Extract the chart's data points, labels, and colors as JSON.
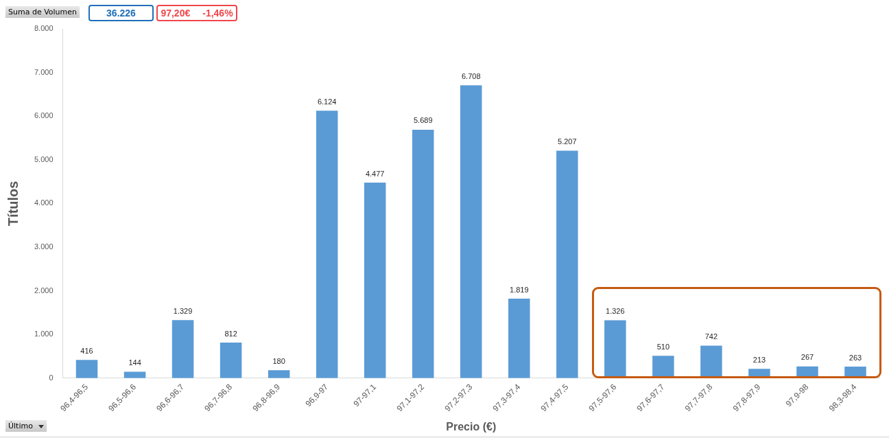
{
  "chart_data": {
    "type": "bar",
    "xlabel": "Precio (€)",
    "ylabel": "Títulos",
    "categories": [
      "96,4-96,5",
      "96,5-96,6",
      "96,6-96,7",
      "96,7-96,8",
      "96,8-96,9",
      "96,9-97",
      "97-97,1",
      "97,1-97,2",
      "97,2-97,3",
      "97,3-97,4",
      "97,4-97,5",
      "97,5-97,6",
      "97,6-97,7",
      "97,7-97,8",
      "97,8-97,9",
      "97,9-98",
      "98,3-98,4"
    ],
    "values": [
      416,
      144,
      1329,
      812,
      180,
      6124,
      4477,
      5689,
      6708,
      1819,
      5207,
      1326,
      510,
      742,
      213,
      267,
      263
    ],
    "value_labels": [
      "416",
      "144",
      "1.329",
      "812",
      "180",
      "6.124",
      "4.477",
      "5.689",
      "6.708",
      "1.819",
      "5.207",
      "1.326",
      "510",
      "742",
      "213",
      "267",
      "263"
    ],
    "color": "#5b9bd5",
    "ylim": [
      0,
      8000
    ],
    "yticks": [
      {
        "value": 0,
        "label": "0"
      },
      {
        "value": 1000,
        "label": "1.000"
      },
      {
        "value": 2000,
        "label": "2.000"
      },
      {
        "value": 3000,
        "label": "3.000"
      },
      {
        "value": 4000,
        "label": "4.000"
      },
      {
        "value": 5000,
        "label": "5.000"
      },
      {
        "value": 6000,
        "label": "6.000"
      },
      {
        "value": 7000,
        "label": "7.000"
      },
      {
        "value": 8000,
        "label": "8.000"
      }
    ],
    "grid": false,
    "legend": false,
    "annotations": [
      "Suma de Volumen",
      "36.226",
      "97,20€",
      "-1,46%",
      "Último"
    ]
  }
}
